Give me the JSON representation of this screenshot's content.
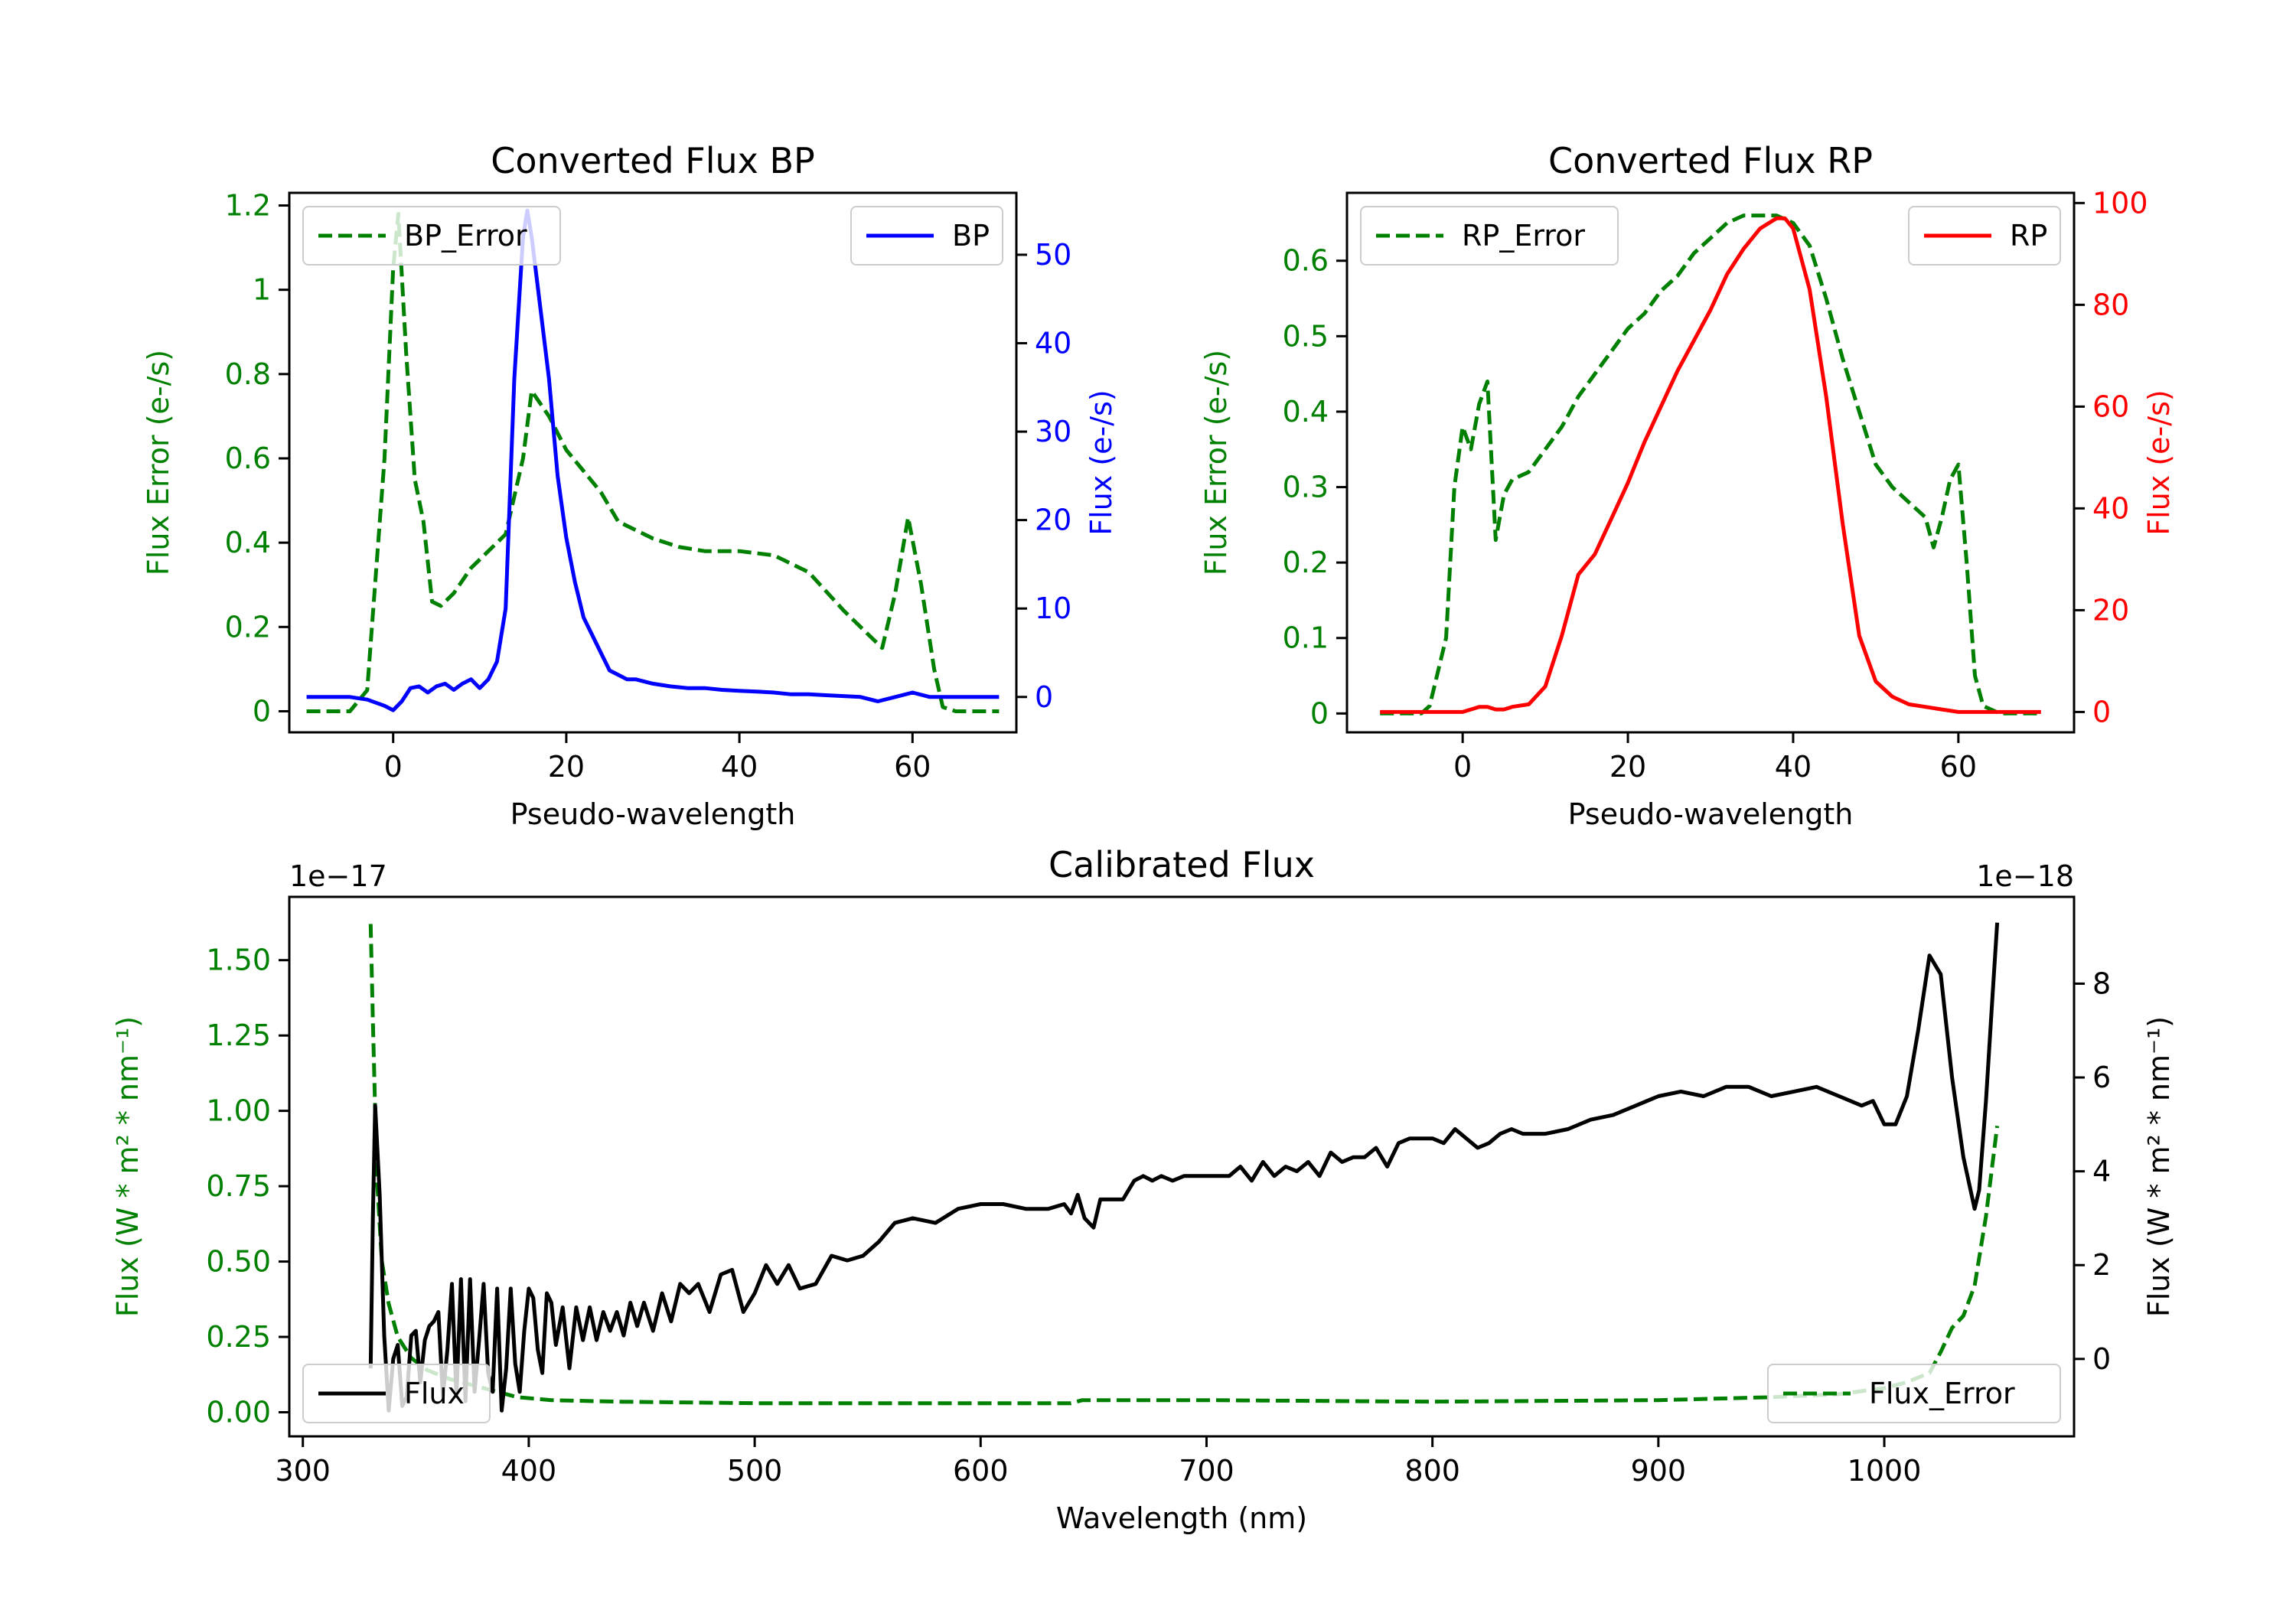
{
  "chart_data": [
    {
      "type": "line",
      "title": "Converted Flux BP",
      "xlabel": "Pseudo-wavelength",
      "ylabel_left": "Flux Error (e-/s)",
      "ylabel_right": "Flux (e-/s)",
      "xlim": [
        -12,
        72
      ],
      "ylim_left": [
        -0.05,
        1.23
      ],
      "ylim_right": [
        -4,
        57
      ],
      "xticks": [
        0,
        20,
        40,
        60
      ],
      "yticks_left": [
        0.0,
        0.2,
        0.4,
        0.6,
        0.8,
        1.0,
        1.2
      ],
      "yticks_right": [
        0,
        10,
        20,
        30,
        40,
        50
      ],
      "left_color": "#008000",
      "right_color": "#0000ff",
      "legend_left": {
        "label": "BP_Error",
        "placement": "upper-left"
      },
      "legend_right": {
        "label": "BP",
        "placement": "upper-right"
      },
      "series": [
        {
          "name": "BP_Error",
          "axis": "left",
          "style": "dashed",
          "color": "#008000",
          "x": [
            -10,
            -5,
            -3,
            -1,
            0,
            0.6,
            1.5,
            2.5,
            3.5,
            4.5,
            5.5,
            7,
            9,
            11,
            13,
            15,
            16,
            18,
            20,
            22,
            24,
            26,
            28,
            30,
            33,
            36,
            40,
            44,
            48,
            52,
            55,
            56.5,
            58,
            59.5,
            61,
            62.5,
            63.5,
            65,
            67,
            70
          ],
          "y": [
            0.0,
            0.0,
            0.05,
            0.6,
            1.05,
            1.18,
            0.85,
            0.55,
            0.45,
            0.26,
            0.25,
            0.28,
            0.34,
            0.38,
            0.42,
            0.6,
            0.76,
            0.7,
            0.62,
            0.57,
            0.52,
            0.45,
            0.43,
            0.41,
            0.39,
            0.38,
            0.38,
            0.37,
            0.33,
            0.24,
            0.18,
            0.15,
            0.28,
            0.46,
            0.3,
            0.1,
            0.01,
            0.0,
            0.0,
            0.0
          ]
        },
        {
          "name": "BP",
          "axis": "right",
          "style": "solid",
          "color": "#0000ff",
          "x": [
            -10,
            -5,
            -3,
            -1,
            0,
            1,
            2,
            3,
            4,
            5,
            6,
            7,
            8,
            9,
            10,
            11,
            12,
            13,
            14,
            15,
            15.5,
            16,
            17,
            18,
            19,
            20,
            21,
            22,
            23,
            24,
            25,
            26,
            27,
            28,
            30,
            32,
            34,
            36,
            38,
            40,
            42,
            44,
            46,
            48,
            50,
            52,
            54,
            56,
            58,
            60,
            62,
            65,
            70
          ],
          "y": [
            0,
            0,
            -0.3,
            -1,
            -1.5,
            -0.5,
            1,
            1.2,
            0.5,
            1.2,
            1.5,
            0.8,
            1.5,
            2,
            1,
            2,
            4,
            10,
            36,
            52,
            55,
            52,
            44,
            36,
            25,
            18,
            13,
            9,
            7,
            5,
            3,
            2.5,
            2,
            2,
            1.5,
            1.2,
            1,
            1,
            0.8,
            0.7,
            0.6,
            0.5,
            0.3,
            0.3,
            0.2,
            0.1,
            0,
            -0.5,
            0,
            0.5,
            0,
            0,
            0
          ]
        }
      ]
    },
    {
      "type": "line",
      "title": "Converted Flux RP",
      "xlabel": "Pseudo-wavelength",
      "ylabel_left": "Flux Error (e-/s)",
      "ylabel_right": "Flux (e-/s)",
      "xlim": [
        -14,
        74
      ],
      "ylim_left": [
        -0.025,
        0.69
      ],
      "ylim_right": [
        -4,
        102
      ],
      "xticks": [
        0,
        20,
        40,
        60
      ],
      "yticks_left": [
        0.0,
        0.1,
        0.2,
        0.3,
        0.4,
        0.5,
        0.6
      ],
      "yticks_right": [
        0,
        20,
        40,
        60,
        80,
        100
      ],
      "left_color": "#008000",
      "right_color": "#ff0000",
      "legend_left": {
        "label": "RP_Error",
        "placement": "upper-left"
      },
      "legend_right": {
        "label": "RP",
        "placement": "upper-right"
      },
      "series": [
        {
          "name": "RP_Error",
          "axis": "left",
          "style": "dashed",
          "color": "#008000",
          "x": [
            -10,
            -5,
            -4,
            -2,
            -1,
            0,
            1,
            2,
            3,
            4,
            5,
            6,
            8,
            10,
            12,
            14,
            16,
            18,
            20,
            22,
            24,
            26,
            28,
            30,
            32,
            34,
            36,
            38,
            40,
            42,
            44,
            46,
            48,
            50,
            52,
            54,
            56,
            57,
            58,
            59,
            60,
            61,
            62,
            63,
            65,
            70
          ],
          "y": [
            0.0,
            0.0,
            0.01,
            0.1,
            0.3,
            0.38,
            0.35,
            0.41,
            0.44,
            0.23,
            0.29,
            0.31,
            0.32,
            0.35,
            0.38,
            0.42,
            0.45,
            0.48,
            0.51,
            0.53,
            0.56,
            0.58,
            0.61,
            0.63,
            0.65,
            0.66,
            0.66,
            0.66,
            0.65,
            0.62,
            0.55,
            0.47,
            0.4,
            0.33,
            0.3,
            0.28,
            0.26,
            0.22,
            0.26,
            0.31,
            0.33,
            0.2,
            0.05,
            0.01,
            0.0,
            0.0
          ]
        },
        {
          "name": "RP",
          "axis": "right",
          "style": "solid",
          "color": "#ff0000",
          "x": [
            -10,
            -5,
            0,
            1,
            2,
            3,
            4,
            5,
            6,
            8,
            10,
            12,
            14,
            16,
            18,
            20,
            22,
            24,
            26,
            28,
            30,
            32,
            34,
            36,
            37,
            38,
            39,
            40,
            42,
            44,
            46,
            48,
            50,
            52,
            54,
            56,
            58,
            60,
            62,
            65,
            70
          ],
          "y": [
            0,
            0,
            0,
            0.5,
            1,
            1,
            0.5,
            0.5,
            1,
            1.5,
            5,
            15,
            27,
            31,
            38,
            45,
            53,
            60,
            67,
            73,
            79,
            86,
            91,
            95,
            96,
            97,
            97,
            95,
            83,
            62,
            37,
            15,
            6,
            3,
            1.5,
            1,
            0.5,
            0,
            0,
            0,
            0
          ]
        }
      ]
    },
    {
      "type": "line",
      "title": "Calibrated Flux",
      "xlabel": "Wavelength (nm)",
      "ylabel_left": "Flux (W * m² * nm⁻¹)",
      "ylabel_right": "Flux (W * m² * nm⁻¹)",
      "offset_left": "1e−17",
      "offset_right": "1e−18",
      "xlim": [
        294,
        1084
      ],
      "ylim_left": [
        -0.08,
        1.71
      ],
      "ylim_right": [
        -1.65,
        9.85
      ],
      "xticks": [
        300,
        400,
        500,
        600,
        700,
        800,
        900,
        1000
      ],
      "yticks_left": [
        0.0,
        0.25,
        0.5,
        0.75,
        1.0,
        1.25,
        1.5
      ],
      "yticks_left_labels": [
        "0.00",
        "0.25",
        "0.50",
        "0.75",
        "1.00",
        "1.25",
        "1.50"
      ],
      "yticks_right": [
        0,
        2,
        4,
        6,
        8
      ],
      "left_color": "#008000",
      "right_color": "#000000",
      "legend_left": {
        "label": "Flux_Error",
        "placement": "lower-right"
      },
      "legend_right": {
        "label": "Flux",
        "placement": "lower-left"
      },
      "series": [
        {
          "name": "Flux_Error",
          "axis": "left",
          "style": "dashed",
          "color": "#008000",
          "x": [
            330,
            331,
            332,
            333,
            335,
            338,
            342,
            348,
            355,
            365,
            375,
            385,
            395,
            410,
            440,
            500,
            600,
            630,
            640,
            645,
            700,
            800,
            900,
            950,
            980,
            1000,
            1010,
            1020,
            1025,
            1030,
            1035,
            1040,
            1045,
            1050
          ],
          "y": [
            1.62,
            1.3,
            1.0,
            0.75,
            0.5,
            0.36,
            0.25,
            0.18,
            0.14,
            0.11,
            0.09,
            0.07,
            0.05,
            0.04,
            0.035,
            0.03,
            0.03,
            0.03,
            0.03,
            0.04,
            0.04,
            0.035,
            0.04,
            0.05,
            0.06,
            0.08,
            0.1,
            0.13,
            0.2,
            0.28,
            0.32,
            0.42,
            0.65,
            0.95
          ]
        },
        {
          "name": "Flux",
          "axis": "right",
          "style": "solid",
          "color": "#000000",
          "x": [
            330,
            331,
            332,
            334,
            336,
            338,
            340,
            342,
            344,
            346,
            348,
            350,
            352,
            354,
            356,
            358,
            360,
            362,
            364,
            366,
            368,
            370,
            372,
            374,
            376,
            378,
            380,
            382,
            384,
            386,
            388,
            390,
            392,
            394,
            396,
            398,
            400,
            402,
            404,
            406,
            408,
            410,
            412,
            415,
            418,
            421,
            424,
            427,
            430,
            433,
            436,
            439,
            442,
            445,
            448,
            451,
            455,
            459,
            463,
            467,
            471,
            475,
            480,
            485,
            490,
            495,
            500,
            505,
            510,
            515,
            520,
            527,
            534,
            541,
            548,
            555,
            562,
            570,
            580,
            590,
            600,
            610,
            620,
            630,
            637,
            640,
            643,
            646,
            650,
            653,
            658,
            663,
            668,
            672,
            676,
            680,
            685,
            690,
            700,
            710,
            715,
            720,
            725,
            730,
            735,
            740,
            745,
            750,
            755,
            760,
            765,
            770,
            775,
            780,
            785,
            790,
            795,
            800,
            805,
            810,
            815,
            820,
            825,
            830,
            835,
            840,
            850,
            860,
            870,
            880,
            890,
            900,
            910,
            920,
            930,
            940,
            950,
            960,
            970,
            980,
            990,
            995,
            1000,
            1005,
            1010,
            1015,
            1020,
            1025,
            1030,
            1035,
            1040,
            1042,
            1045,
            1048,
            1050
          ],
          "y": [
            -0.2,
            3.0,
            5.4,
            3.5,
            0.5,
            -1.1,
            0.0,
            0.3,
            -1.0,
            -0.8,
            0.5,
            0.6,
            -0.5,
            0.4,
            0.7,
            0.8,
            1.0,
            -0.8,
            0.2,
            1.6,
            -0.8,
            1.7,
            -0.9,
            1.7,
            -0.7,
            0.4,
            1.6,
            -0.3,
            -0.7,
            1.5,
            -1.1,
            -0.2,
            1.5,
            -0.1,
            -0.7,
            0.6,
            1.5,
            1.3,
            0.2,
            -0.3,
            1.4,
            1.2,
            0.3,
            1.1,
            -0.2,
            1.1,
            0.4,
            1.1,
            0.4,
            1.0,
            0.6,
            1.0,
            0.5,
            1.2,
            0.7,
            1.2,
            0.6,
            1.4,
            0.8,
            1.6,
            1.4,
            1.6,
            1.0,
            1.8,
            1.9,
            1.0,
            1.4,
            2.0,
            1.6,
            2.0,
            1.5,
            1.6,
            2.2,
            2.1,
            2.2,
            2.5,
            2.9,
            3.0,
            2.9,
            3.2,
            3.3,
            3.3,
            3.2,
            3.2,
            3.3,
            3.1,
            3.5,
            3.0,
            2.8,
            3.4,
            3.4,
            3.4,
            3.8,
            3.9,
            3.8,
            3.9,
            3.8,
            3.9,
            3.9,
            3.9,
            4.1,
            3.8,
            4.2,
            3.9,
            4.1,
            4.0,
            4.2,
            3.9,
            4.4,
            4.2,
            4.3,
            4.3,
            4.5,
            4.1,
            4.6,
            4.7,
            4.7,
            4.7,
            4.6,
            4.9,
            4.7,
            4.5,
            4.6,
            4.8,
            4.9,
            4.8,
            4.8,
            4.9,
            5.1,
            5.2,
            5.4,
            5.6,
            5.7,
            5.6,
            5.8,
            5.8,
            5.6,
            5.7,
            5.8,
            5.6,
            5.4,
            5.5,
            5.0,
            5.0,
            5.6,
            7.0,
            8.6,
            8.2,
            6.0,
            4.3,
            3.2,
            3.6,
            5.5,
            7.8,
            9.3
          ]
        }
      ]
    }
  ]
}
